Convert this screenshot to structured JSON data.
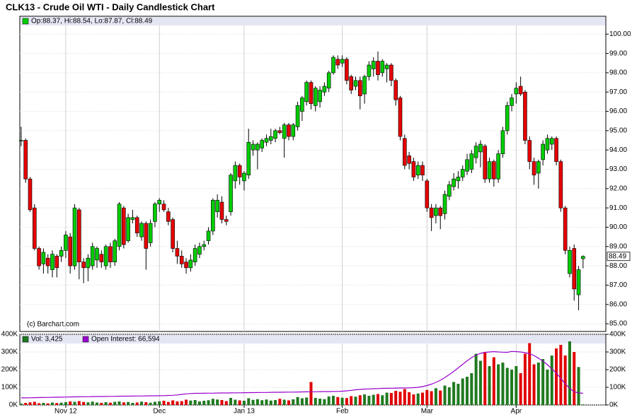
{
  "chart_data": [
    {
      "type": "candlestick",
      "title": "CLK13 - Crude Oil WTI - Daily Candlestick Chart",
      "ohlc_label": "Op:88.37, Hi:88.54, Lo:87.87, Cl:88.49",
      "source": "(c) Barchart.com",
      "up_color": "#00cc00",
      "down_color": "#e60000",
      "last_price": 88.49,
      "xlim": [
        -0.3,
        131.1
      ],
      "ylim": [
        84.6,
        100.45
      ],
      "yticks": [
        {
          "value": 85,
          "label": "85.00"
        },
        {
          "value": 86,
          "label": "86.00"
        },
        {
          "value": 87,
          "label": "87.00"
        },
        {
          "value": 88,
          "label": "88.00"
        },
        {
          "value": 89,
          "label": "89.00"
        },
        {
          "value": 90,
          "label": "90.00"
        },
        {
          "value": 91,
          "label": "91.00"
        },
        {
          "value": 92,
          "label": "92.00"
        },
        {
          "value": 93,
          "label": "93.00"
        },
        {
          "value": 94,
          "label": "94.00"
        },
        {
          "value": 95,
          "label": "95.00"
        },
        {
          "value": 96,
          "label": "96.00"
        },
        {
          "value": 97,
          "label": "97.00"
        },
        {
          "value": 98,
          "label": "98.00"
        },
        {
          "value": 99,
          "label": "99.00"
        },
        {
          "value": 100,
          "label": "100.00"
        }
      ],
      "grid": true,
      "candles": [
        [
          94.5,
          95.2,
          94.2,
          94.5
        ],
        [
          94.5,
          94.6,
          92.3,
          92.5
        ],
        [
          92.5,
          92.6,
          90.8,
          90.9
        ],
        [
          91.0,
          91.2,
          88.8,
          88.9
        ],
        [
          88.9,
          89.0,
          87.8,
          88.0
        ],
        [
          88.1,
          88.9,
          87.6,
          88.7
        ],
        [
          88.4,
          88.6,
          87.6,
          88.0
        ],
        [
          87.8,
          88.8,
          87.4,
          88.6
        ],
        [
          88.5,
          88.6,
          87.4,
          87.9
        ],
        [
          88.5,
          89.0,
          88.2,
          88.8
        ],
        [
          88.8,
          89.8,
          88.4,
          89.6
        ],
        [
          89.5,
          89.7,
          87.6,
          88.0
        ],
        [
          88.0,
          91.2,
          87.8,
          91.0
        ],
        [
          90.9,
          91.0,
          87.3,
          88.2
        ],
        [
          88.2,
          88.4,
          87.1,
          87.9
        ],
        [
          87.9,
          88.6,
          87.2,
          88.4
        ],
        [
          88.0,
          89.2,
          87.8,
          89.0
        ],
        [
          88.3,
          89.0,
          87.9,
          88.9
        ],
        [
          88.6,
          88.8,
          87.9,
          88.2
        ],
        [
          88.0,
          89.1,
          87.8,
          89.0
        ],
        [
          89.0,
          89.2,
          87.9,
          88.2
        ],
        [
          88.2,
          89.4,
          88.0,
          89.3
        ],
        [
          89.0,
          91.3,
          88.8,
          91.2
        ],
        [
          91.0,
          91.1,
          88.9,
          89.1
        ],
        [
          89.3,
          90.7,
          89.2,
          90.5
        ],
        [
          90.4,
          90.9,
          90.2,
          90.5
        ],
        [
          90.5,
          90.6,
          89.5,
          89.7
        ],
        [
          89.5,
          90.3,
          89.3,
          90.2
        ],
        [
          90.2,
          90.3,
          87.8,
          88.9
        ],
        [
          89.2,
          90.4,
          89.0,
          90.2
        ],
        [
          90.3,
          91.3,
          90.0,
          91.2
        ],
        [
          91.2,
          91.5,
          90.8,
          91.4
        ],
        [
          91.2,
          91.4,
          90.8,
          90.9
        ],
        [
          90.8,
          91.0,
          90.1,
          90.3
        ],
        [
          90.4,
          90.5,
          88.7,
          88.9
        ],
        [
          88.9,
          89.3,
          88.1,
          88.5
        ],
        [
          88.5,
          88.8,
          87.9,
          88.1
        ],
        [
          88.2,
          88.4,
          87.6,
          87.9
        ],
        [
          87.9,
          88.6,
          87.7,
          88.3
        ],
        [
          88.2,
          89.1,
          88.0,
          88.9
        ],
        [
          88.6,
          89.2,
          88.4,
          89.0
        ],
        [
          89.0,
          89.3,
          88.8,
          89.1
        ],
        [
          89.3,
          90.0,
          89.1,
          89.8
        ],
        [
          89.8,
          91.5,
          89.6,
          91.4
        ],
        [
          90.8,
          91.7,
          90.5,
          91.4
        ],
        [
          91.3,
          91.6,
          90.2,
          90.4
        ],
        [
          90.4,
          90.6,
          90.1,
          90.3
        ],
        [
          90.8,
          92.8,
          90.6,
          92.7
        ],
        [
          92.4,
          93.4,
          92.0,
          93.2
        ],
        [
          93.2,
          93.3,
          92.2,
          92.6
        ],
        [
          92.4,
          92.9,
          91.9,
          92.8
        ],
        [
          92.7,
          95.1,
          92.5,
          94.4
        ],
        [
          94.0,
          94.5,
          93.7,
          94.3
        ],
        [
          94.0,
          94.4,
          93.0,
          94.3
        ],
        [
          94.1,
          94.6,
          93.9,
          94.5
        ],
        [
          94.4,
          94.8,
          94.2,
          94.6
        ],
        [
          94.5,
          95.1,
          94.3,
          94.7
        ],
        [
          94.6,
          95.1,
          94.4,
          95.0
        ],
        [
          95.0,
          95.2,
          94.8,
          94.9
        ],
        [
          94.6,
          95.4,
          93.6,
          95.3
        ],
        [
          95.3,
          95.4,
          94.5,
          94.7
        ],
        [
          94.7,
          95.4,
          94.5,
          95.3
        ],
        [
          95.2,
          96.5,
          95.0,
          96.3
        ],
        [
          96.0,
          96.8,
          95.5,
          96.7
        ],
        [
          96.5,
          97.6,
          96.3,
          97.5
        ],
        [
          97.5,
          97.6,
          96.1,
          96.4
        ],
        [
          96.3,
          97.3,
          96.0,
          97.2
        ],
        [
          96.5,
          97.3,
          96.2,
          97.1
        ],
        [
          97.0,
          97.5,
          96.8,
          97.3
        ],
        [
          97.2,
          98.1,
          97.0,
          98.0
        ],
        [
          98.0,
          98.9,
          97.9,
          98.8
        ],
        [
          98.7,
          98.9,
          98.2,
          98.4
        ],
        [
          98.5,
          98.9,
          98.3,
          98.7
        ],
        [
          98.7,
          98.8,
          97.4,
          97.6
        ],
        [
          97.8,
          97.9,
          96.9,
          97.1
        ],
        [
          97.3,
          97.8,
          97.1,
          97.6
        ],
        [
          97.6,
          97.8,
          96.1,
          96.8
        ],
        [
          96.9,
          97.9,
          96.4,
          97.8
        ],
        [
          97.8,
          98.6,
          97.6,
          98.4
        ],
        [
          98.2,
          98.8,
          97.8,
          98.6
        ],
        [
          98.6,
          99.1,
          97.6,
          97.9
        ],
        [
          98.0,
          98.7,
          97.8,
          98.6
        ],
        [
          98.2,
          98.5,
          97.5,
          98.4
        ],
        [
          98.4,
          98.5,
          97.3,
          97.6
        ],
        [
          97.6,
          97.7,
          96.3,
          96.6
        ],
        [
          96.7,
          96.8,
          94.5,
          94.7
        ],
        [
          94.6,
          94.8,
          93.0,
          93.2
        ],
        [
          93.7,
          93.9,
          93.0,
          93.3
        ],
        [
          93.4,
          93.6,
          92.4,
          92.6
        ],
        [
          92.7,
          93.4,
          92.5,
          93.2
        ],
        [
          93.2,
          93.4,
          92.4,
          92.7
        ],
        [
          92.4,
          92.5,
          90.8,
          91.0
        ],
        [
          91.0,
          91.2,
          89.8,
          90.5
        ],
        [
          90.6,
          91.2,
          90.2,
          91.0
        ],
        [
          91.0,
          91.1,
          89.9,
          90.6
        ],
        [
          90.7,
          91.9,
          90.4,
          91.7
        ],
        [
          91.6,
          92.4,
          91.4,
          92.2
        ],
        [
          92.1,
          92.8,
          91.9,
          92.5
        ],
        [
          92.4,
          92.9,
          92.0,
          92.6
        ],
        [
          92.6,
          93.2,
          92.4,
          93.0
        ],
        [
          92.9,
          93.8,
          92.7,
          93.5
        ],
        [
          93.0,
          94.0,
          92.8,
          93.8
        ],
        [
          93.6,
          94.4,
          93.3,
          94.2
        ],
        [
          93.9,
          94.5,
          93.1,
          94.3
        ],
        [
          94.2,
          94.3,
          92.3,
          92.5
        ],
        [
          92.5,
          93.6,
          92.3,
          93.4
        ],
        [
          93.4,
          93.5,
          92.1,
          92.5
        ],
        [
          92.5,
          94.0,
          92.3,
          93.8
        ],
        [
          93.8,
          95.2,
          93.6,
          95.0
        ],
        [
          95.0,
          96.5,
          94.8,
          96.3
        ],
        [
          96.3,
          96.9,
          96.0,
          96.7
        ],
        [
          96.9,
          97.5,
          96.4,
          97.2
        ],
        [
          97.3,
          97.8,
          96.8,
          96.9
        ],
        [
          97.0,
          97.1,
          94.3,
          94.5
        ],
        [
          94.5,
          94.7,
          93.0,
          93.4
        ],
        [
          93.4,
          93.6,
          92.2,
          92.7
        ],
        [
          92.8,
          93.5,
          92.0,
          93.4
        ],
        [
          93.5,
          94.5,
          93.2,
          94.3
        ],
        [
          94.0,
          94.8,
          93.8,
          94.6
        ],
        [
          94.3,
          94.7,
          94.0,
          94.6
        ],
        [
          94.6,
          94.7,
          93.2,
          93.4
        ],
        [
          93.4,
          93.5,
          90.8,
          91.0
        ],
        [
          91.0,
          91.1,
          88.6,
          88.8
        ],
        [
          87.6,
          89.0,
          87.4,
          88.8
        ],
        [
          88.9,
          89.1,
          86.2,
          86.8
        ],
        [
          86.5,
          88.0,
          85.7,
          87.8
        ],
        [
          88.37,
          88.54,
          87.87,
          88.49
        ]
      ]
    },
    {
      "type": "volume",
      "xlim": [
        -0.3,
        131.1
      ],
      "ylim": [
        0,
        400000
      ],
      "yticks": [
        {
          "value": 0,
          "label": "0K"
        },
        {
          "value": 100000,
          "label": "100K"
        },
        {
          "value": 200000,
          "label": "200K"
        },
        {
          "value": 300000,
          "label": "300K"
        },
        {
          "value": 400000,
          "label": "400K"
        }
      ],
      "xticks": [
        {
          "value": 10,
          "label": "Nov 12"
        },
        {
          "value": 31,
          "label": "Dec"
        },
        {
          "value": 50,
          "label": "Jan 13"
        },
        {
          "value": 72,
          "label": "Feb"
        },
        {
          "value": 91,
          "label": "Mar"
        },
        {
          "value": 111,
          "label": "Apr"
        }
      ],
      "series": [
        {
          "name": "Vol: 3,425",
          "color": "#1f7a1f",
          "down_color": "#e00000",
          "values": [
            8000,
            12000,
            15000,
            18000,
            10000,
            12000,
            9000,
            14000,
            11000,
            13000,
            16000,
            20000,
            18000,
            22000,
            17000,
            15000,
            19000,
            14000,
            12000,
            16000,
            13000,
            18000,
            20000,
            15000,
            17000,
            12000,
            14000,
            19000,
            16000,
            13000,
            18000,
            21000,
            24000,
            17000,
            26000,
            20000,
            22000,
            30000,
            25000,
            28000,
            20000,
            24000,
            27000,
            35000,
            31000,
            28000,
            22000,
            40000,
            30000,
            26000,
            24000,
            38000,
            29000,
            33000,
            27000,
            31000,
            25000,
            28000,
            35000,
            30000,
            26000,
            32000,
            45000,
            38000,
            42000,
            130000,
            40000,
            36000,
            33000,
            48000,
            52000,
            45000,
            41000,
            39000,
            50000,
            47000,
            55000,
            60000,
            52000,
            58000,
            62000,
            55000,
            70000,
            68000,
            80000,
            75000,
            90000,
            72000,
            60000,
            65000,
            70000,
            85000,
            78000,
            95000,
            82000,
            110000,
            100000,
            130000,
            120000,
            150000,
            160000,
            180000,
            290000,
            250000,
            300000,
            220000,
            270000,
            230000,
            240000,
            210000,
            200000,
            220000,
            180000,
            290000,
            350000,
            230000,
            240000,
            260000,
            200000,
            280000,
            320000,
            340000,
            280000,
            360000,
            300000,
            215000,
            3425
          ]
        },
        {
          "name": "Open Interest: 66,594",
          "color": "#9900cc",
          "values": [
            40000,
            40500,
            41000,
            41500,
            42000,
            42500,
            43000,
            43500,
            44000,
            44500,
            45000,
            45500,
            46000,
            46500,
            47000,
            47000,
            47500,
            48000,
            48000,
            48500,
            49000,
            49000,
            49500,
            50000,
            50000,
            50500,
            51000,
            51000,
            51500,
            52000,
            52000,
            52500,
            53000,
            54000,
            55000,
            57000,
            60000,
            63000,
            65000,
            66000,
            66000,
            66500,
            67000,
            67000,
            67500,
            68000,
            68000,
            68500,
            69000,
            69000,
            69500,
            70000,
            70000,
            70500,
            71000,
            71000,
            71500,
            72000,
            72000,
            72500,
            73000,
            73000,
            73500,
            74000,
            74500,
            75000,
            75000,
            75500,
            76000,
            76000,
            76500,
            77000,
            78000,
            80000,
            83000,
            86000,
            88000,
            90000,
            91000,
            92000,
            93000,
            94000,
            94500,
            95000,
            95500,
            96000,
            96000,
            97000,
            98000,
            100000,
            104000,
            110000,
            118000,
            128000,
            140000,
            155000,
            172000,
            190000,
            210000,
            230000,
            250000,
            268000,
            282000,
            292000,
            298000,
            300000,
            302000,
            300000,
            299000,
            298000,
            303000,
            302000,
            300000,
            296000,
            290000,
            280000,
            265000,
            248000,
            228000,
            205000,
            180000,
            150000,
            120000,
            95000,
            75000,
            68000,
            66594
          ]
        }
      ]
    }
  ]
}
